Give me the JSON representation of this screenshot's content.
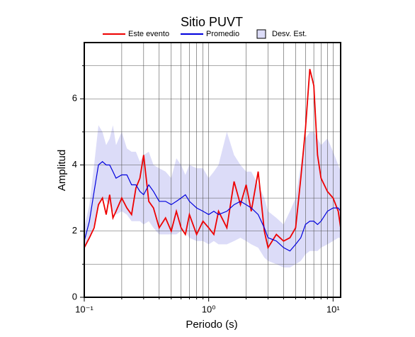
{
  "chart_data": {
    "type": "line",
    "title": "Sitio PUVT",
    "x_label": "Periodo (s)",
    "y_label": "Amplitud",
    "x_scale": "log",
    "grid": true,
    "xlim": [
      0.1,
      11.5
    ],
    "ylim": [
      0,
      7.7
    ],
    "xticks": [
      {
        "value": 0.1,
        "label": "10⁻¹"
      },
      {
        "value": 1,
        "label": "10⁰"
      },
      {
        "value": 10,
        "label": "10¹"
      }
    ],
    "xminor_ticks": [
      0.2,
      0.3,
      0.4,
      0.5,
      0.6,
      0.7,
      0.8,
      0.9,
      2,
      3,
      4,
      5,
      6,
      7,
      8,
      9
    ],
    "yticks": [
      0,
      2,
      4,
      6
    ],
    "yminor_ticks": [
      1,
      3,
      5,
      7
    ],
    "x": [
      0.1,
      0.11,
      0.12,
      0.13,
      0.14,
      0.15,
      0.16,
      0.17,
      0.18,
      0.2,
      0.22,
      0.24,
      0.26,
      0.28,
      0.3,
      0.33,
      0.36,
      0.4,
      0.45,
      0.5,
      0.55,
      0.6,
      0.65,
      0.7,
      0.8,
      0.9,
      1.0,
      1.1,
      1.2,
      1.4,
      1.6,
      1.8,
      2.0,
      2.2,
      2.5,
      2.8,
      3.0,
      3.5,
      4,
      4.5,
      5,
      5.5,
      6,
      6.5,
      7,
      7.5,
      8,
      9,
      10,
      11,
      11.5
    ],
    "series": [
      {
        "name": "Este evento",
        "color": "#ee0000",
        "values": [
          1.5,
          1.8,
          2.1,
          2.8,
          3.0,
          2.5,
          3.1,
          2.4,
          2.6,
          3.0,
          2.7,
          2.5,
          3.3,
          3.6,
          4.3,
          2.9,
          2.7,
          2.1,
          2.4,
          2.0,
          2.6,
          2.1,
          1.9,
          2.5,
          1.9,
          2.3,
          2.1,
          1.9,
          2.6,
          2.1,
          3.5,
          2.8,
          3.4,
          2.6,
          3.8,
          2.0,
          1.5,
          1.9,
          1.7,
          1.8,
          2.1,
          3.6,
          5.1,
          6.9,
          6.4,
          4.3,
          3.6,
          3.2,
          3.0,
          2.6,
          2.1
        ]
      },
      {
        "name": "Promedio",
        "color": "#0000dd",
        "values": [
          1.7,
          2.3,
          3.2,
          4.0,
          4.1,
          4.0,
          4.0,
          3.8,
          3.6,
          3.7,
          3.7,
          3.4,
          3.4,
          3.2,
          3.1,
          3.4,
          3.2,
          2.9,
          2.9,
          2.8,
          2.9,
          3.0,
          3.1,
          2.9,
          2.7,
          2.6,
          2.5,
          2.6,
          2.5,
          2.6,
          2.8,
          2.9,
          2.8,
          2.7,
          2.5,
          2.1,
          1.8,
          1.7,
          1.5,
          1.4,
          1.6,
          1.8,
          2.2,
          2.3,
          2.3,
          2.2,
          2.3,
          2.6,
          2.7,
          2.7,
          2.6
        ]
      },
      {
        "name": "Desv. Est.",
        "color": "#dcdcf8",
        "upper": [
          2.1,
          2.8,
          4.0,
          5.2,
          5.0,
          4.6,
          4.8,
          5.2,
          4.6,
          5.0,
          4.5,
          4.4,
          4.4,
          4.1,
          4.3,
          4.4,
          4.0,
          3.9,
          3.8,
          3.6,
          4.2,
          4.0,
          3.7,
          4.0,
          3.9,
          3.9,
          3.6,
          3.8,
          4.0,
          5.0,
          4.3,
          4.0,
          3.8,
          3.8,
          3.4,
          3.0,
          2.6,
          2.4,
          2.2,
          2.6,
          3.0,
          4.0,
          4.8,
          5.0,
          5.0,
          4.8,
          4.6,
          4.8,
          4.4,
          4.0,
          3.8
        ],
        "lower": [
          1.5,
          1.8,
          2.2,
          2.7,
          3.0,
          2.9,
          2.8,
          2.6,
          2.5,
          2.6,
          2.5,
          2.3,
          2.3,
          2.3,
          2.2,
          2.3,
          2.1,
          1.9,
          1.9,
          1.9,
          1.9,
          2.0,
          2.0,
          1.8,
          1.7,
          1.7,
          1.6,
          1.7,
          1.6,
          1.6,
          1.7,
          1.8,
          1.7,
          1.6,
          1.5,
          1.2,
          1.1,
          1.0,
          0.9,
          0.9,
          1.0,
          1.1,
          1.3,
          1.4,
          1.4,
          1.4,
          1.5,
          1.6,
          1.7,
          1.8,
          1.8
        ]
      }
    ]
  }
}
